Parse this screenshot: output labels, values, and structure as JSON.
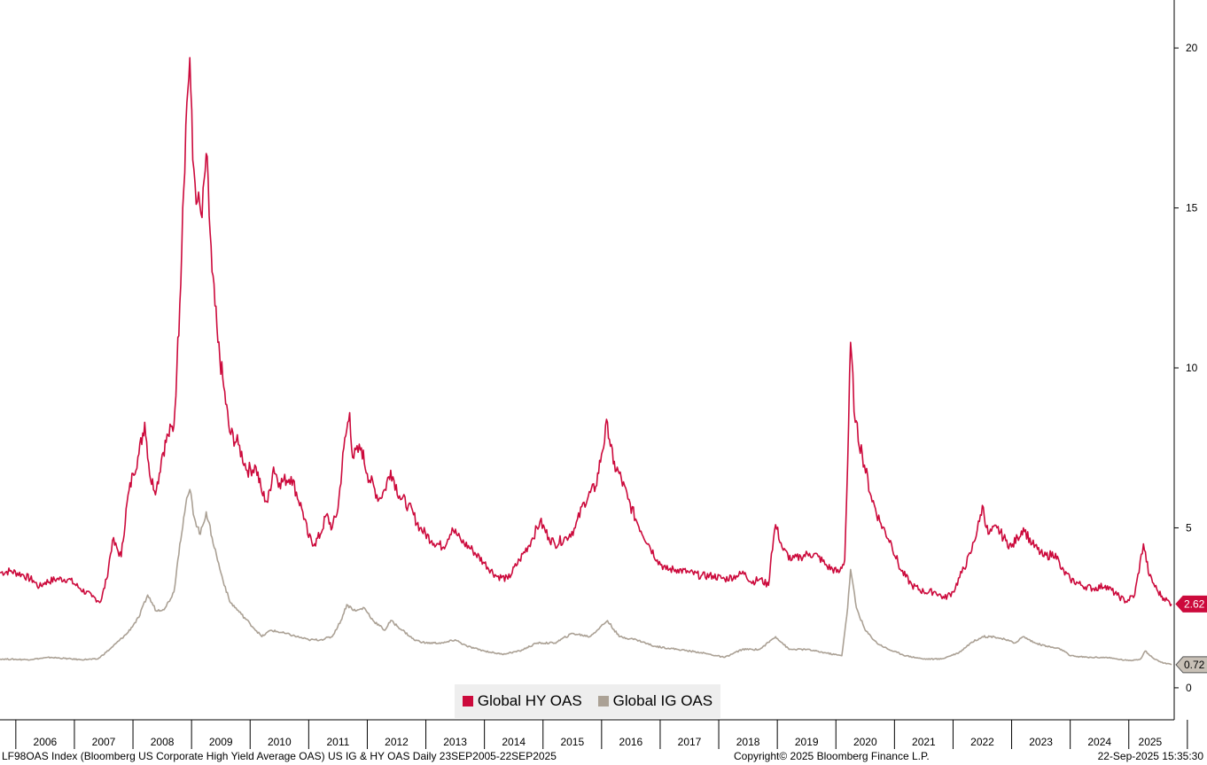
{
  "chart_data": {
    "type": "line",
    "title": "LF98OAS Index (Bloomberg US Corporate High Yield Average OAS) US IG & HY OAS",
    "xlabel": "",
    "ylabel": "",
    "xlim": [
      2005.73,
      2025.73
    ],
    "ylim": [
      -1,
      21.5
    ],
    "y_ticks": [
      0,
      5,
      10,
      15,
      20
    ],
    "y_tick_labels": [
      "0",
      "5",
      "10",
      "15",
      "20"
    ],
    "x_tick_labels": [
      "2006",
      "2007",
      "2008",
      "2009",
      "2010",
      "2011",
      "2012",
      "2013",
      "2014",
      "2015",
      "2016",
      "2017",
      "2018",
      "2019",
      "2020",
      "2021",
      "2022",
      "2023",
      "2024",
      "2025"
    ],
    "legend_position": "bottom-center",
    "series": [
      {
        "name": "Global HY OAS",
        "color": "#cc0a3c",
        "last_value": "2.62",
        "points": [
          [
            2005.73,
            3.6
          ],
          [
            2005.9,
            3.65
          ],
          [
            2006.1,
            3.55
          ],
          [
            2006.3,
            3.35
          ],
          [
            2006.4,
            3.15
          ],
          [
            2006.5,
            3.3
          ],
          [
            2006.7,
            3.4
          ],
          [
            2006.9,
            3.4
          ],
          [
            2007.1,
            3.1
          ],
          [
            2007.3,
            2.85
          ],
          [
            2007.45,
            2.7
          ],
          [
            2007.55,
            3.4
          ],
          [
            2007.65,
            4.6
          ],
          [
            2007.8,
            4.1
          ],
          [
            2007.9,
            5.8
          ],
          [
            2008.0,
            6.7
          ],
          [
            2008.1,
            7.3
          ],
          [
            2008.2,
            8.3
          ],
          [
            2008.3,
            6.5
          ],
          [
            2008.4,
            6.2
          ],
          [
            2008.5,
            7.3
          ],
          [
            2008.6,
            7.9
          ],
          [
            2008.7,
            8.2
          ],
          [
            2008.75,
            10.0
          ],
          [
            2008.8,
            12.0
          ],
          [
            2008.85,
            15.0
          ],
          [
            2008.92,
            18.3
          ],
          [
            2008.97,
            19.7
          ],
          [
            2009.02,
            16.5
          ],
          [
            2009.1,
            15.2
          ],
          [
            2009.18,
            14.7
          ],
          [
            2009.25,
            16.7
          ],
          [
            2009.35,
            13.0
          ],
          [
            2009.45,
            10.8
          ],
          [
            2009.55,
            9.4
          ],
          [
            2009.65,
            8.0
          ],
          [
            2009.8,
            7.6
          ],
          [
            2009.95,
            6.8
          ],
          [
            2010.1,
            6.9
          ],
          [
            2010.2,
            6.1
          ],
          [
            2010.3,
            5.8
          ],
          [
            2010.4,
            6.9
          ],
          [
            2010.5,
            6.4
          ],
          [
            2010.7,
            6.6
          ],
          [
            2010.9,
            5.5
          ],
          [
            2011.0,
            4.7
          ],
          [
            2011.1,
            4.5
          ],
          [
            2011.2,
            4.8
          ],
          [
            2011.3,
            5.4
          ],
          [
            2011.4,
            5.0
          ],
          [
            2011.5,
            5.6
          ],
          [
            2011.6,
            7.5
          ],
          [
            2011.7,
            8.6
          ],
          [
            2011.75,
            7.2
          ],
          [
            2011.9,
            7.5
          ],
          [
            2012.0,
            6.7
          ],
          [
            2012.2,
            5.9
          ],
          [
            2012.3,
            6.2
          ],
          [
            2012.4,
            6.8
          ],
          [
            2012.55,
            6.0
          ],
          [
            2012.7,
            5.7
          ],
          [
            2012.9,
            5.0
          ],
          [
            2013.1,
            4.6
          ],
          [
            2013.3,
            4.4
          ],
          [
            2013.45,
            5.0
          ],
          [
            2013.6,
            4.6
          ],
          [
            2013.8,
            4.3
          ],
          [
            2014.0,
            3.9
          ],
          [
            2014.2,
            3.5
          ],
          [
            2014.4,
            3.4
          ],
          [
            2014.6,
            4.0
          ],
          [
            2014.8,
            4.6
          ],
          [
            2014.95,
            5.2
          ],
          [
            2015.1,
            4.7
          ],
          [
            2015.2,
            4.5
          ],
          [
            2015.4,
            4.7
          ],
          [
            2015.55,
            5.0
          ],
          [
            2015.7,
            5.8
          ],
          [
            2015.9,
            6.3
          ],
          [
            2016.0,
            7.3
          ],
          [
            2016.1,
            8.3
          ],
          [
            2016.2,
            7.0
          ],
          [
            2016.3,
            6.7
          ],
          [
            2016.45,
            5.9
          ],
          [
            2016.6,
            5.2
          ],
          [
            2016.8,
            4.5
          ],
          [
            2016.95,
            4.0
          ],
          [
            2017.1,
            3.7
          ],
          [
            2017.3,
            3.7
          ],
          [
            2017.5,
            3.6
          ],
          [
            2017.7,
            3.5
          ],
          [
            2017.9,
            3.5
          ],
          [
            2018.1,
            3.4
          ],
          [
            2018.3,
            3.5
          ],
          [
            2018.45,
            3.6
          ],
          [
            2018.55,
            3.3
          ],
          [
            2018.7,
            3.4
          ],
          [
            2018.85,
            3.2
          ],
          [
            2018.9,
            4.2
          ],
          [
            2018.97,
            5.1
          ],
          [
            2019.1,
            4.3
          ],
          [
            2019.25,
            4.0
          ],
          [
            2019.4,
            4.1
          ],
          [
            2019.55,
            4.2
          ],
          [
            2019.7,
            4.1
          ],
          [
            2019.85,
            3.8
          ],
          [
            2020.05,
            3.6
          ],
          [
            2020.15,
            4.0
          ],
          [
            2020.2,
            7.0
          ],
          [
            2020.25,
            10.8
          ],
          [
            2020.33,
            8.3
          ],
          [
            2020.45,
            7.3
          ],
          [
            2020.6,
            6.0
          ],
          [
            2020.75,
            5.2
          ],
          [
            2020.95,
            4.5
          ],
          [
            2021.1,
            3.7
          ],
          [
            2021.3,
            3.2
          ],
          [
            2021.5,
            3.0
          ],
          [
            2021.7,
            3.0
          ],
          [
            2021.85,
            2.8
          ],
          [
            2022.0,
            3.0
          ],
          [
            2022.15,
            3.6
          ],
          [
            2022.3,
            4.2
          ],
          [
            2022.45,
            5.2
          ],
          [
            2022.5,
            5.7
          ],
          [
            2022.6,
            4.8
          ],
          [
            2022.75,
            5.0
          ],
          [
            2022.9,
            4.6
          ],
          [
            2023.0,
            4.4
          ],
          [
            2023.1,
            4.7
          ],
          [
            2023.2,
            5.0
          ],
          [
            2023.35,
            4.5
          ],
          [
            2023.55,
            4.1
          ],
          [
            2023.75,
            4.2
          ],
          [
            2023.85,
            3.7
          ],
          [
            2024.0,
            3.4
          ],
          [
            2024.2,
            3.2
          ],
          [
            2024.4,
            3.1
          ],
          [
            2024.6,
            3.2
          ],
          [
            2024.8,
            2.9
          ],
          [
            2024.95,
            2.7
          ],
          [
            2025.1,
            2.9
          ],
          [
            2025.25,
            4.5
          ],
          [
            2025.35,
            3.5
          ],
          [
            2025.5,
            3.0
          ],
          [
            2025.6,
            2.8
          ],
          [
            2025.73,
            2.62
          ]
        ]
      },
      {
        "name": "Global IG OAS",
        "color": "#aba195",
        "last_value": "0.72",
        "points": [
          [
            2005.73,
            0.9
          ],
          [
            2006.2,
            0.88
          ],
          [
            2006.6,
            0.95
          ],
          [
            2007.1,
            0.88
          ],
          [
            2007.4,
            0.9
          ],
          [
            2007.6,
            1.2
          ],
          [
            2007.9,
            1.7
          ],
          [
            2008.1,
            2.2
          ],
          [
            2008.25,
            2.9
          ],
          [
            2008.4,
            2.4
          ],
          [
            2008.55,
            2.5
          ],
          [
            2008.7,
            3.0
          ],
          [
            2008.8,
            4.5
          ],
          [
            2008.9,
            5.7
          ],
          [
            2008.97,
            6.2
          ],
          [
            2009.05,
            5.3
          ],
          [
            2009.15,
            4.8
          ],
          [
            2009.25,
            5.5
          ],
          [
            2009.35,
            4.7
          ],
          [
            2009.5,
            3.6
          ],
          [
            2009.65,
            2.7
          ],
          [
            2009.85,
            2.3
          ],
          [
            2010.0,
            2.0
          ],
          [
            2010.2,
            1.6
          ],
          [
            2010.35,
            1.8
          ],
          [
            2010.6,
            1.7
          ],
          [
            2010.8,
            1.6
          ],
          [
            2011.0,
            1.5
          ],
          [
            2011.2,
            1.5
          ],
          [
            2011.4,
            1.6
          ],
          [
            2011.55,
            2.1
          ],
          [
            2011.65,
            2.6
          ],
          [
            2011.8,
            2.4
          ],
          [
            2011.95,
            2.5
          ],
          [
            2012.1,
            2.1
          ],
          [
            2012.3,
            1.8
          ],
          [
            2012.4,
            2.1
          ],
          [
            2012.6,
            1.8
          ],
          [
            2012.8,
            1.5
          ],
          [
            2013.0,
            1.4
          ],
          [
            2013.3,
            1.4
          ],
          [
            2013.5,
            1.5
          ],
          [
            2013.7,
            1.3
          ],
          [
            2014.0,
            1.15
          ],
          [
            2014.3,
            1.05
          ],
          [
            2014.6,
            1.15
          ],
          [
            2014.9,
            1.4
          ],
          [
            2015.2,
            1.4
          ],
          [
            2015.5,
            1.7
          ],
          [
            2015.8,
            1.6
          ],
          [
            2016.1,
            2.1
          ],
          [
            2016.3,
            1.6
          ],
          [
            2016.6,
            1.5
          ],
          [
            2016.9,
            1.3
          ],
          [
            2017.3,
            1.2
          ],
          [
            2017.7,
            1.1
          ],
          [
            2018.1,
            0.95
          ],
          [
            2018.4,
            1.2
          ],
          [
            2018.7,
            1.2
          ],
          [
            2018.97,
            1.6
          ],
          [
            2019.2,
            1.2
          ],
          [
            2019.5,
            1.2
          ],
          [
            2019.8,
            1.1
          ],
          [
            2020.1,
            1.0
          ],
          [
            2020.2,
            2.5
          ],
          [
            2020.25,
            3.7
          ],
          [
            2020.35,
            2.5
          ],
          [
            2020.5,
            1.8
          ],
          [
            2020.7,
            1.4
          ],
          [
            2020.9,
            1.2
          ],
          [
            2021.2,
            1.0
          ],
          [
            2021.5,
            0.9
          ],
          [
            2021.8,
            0.9
          ],
          [
            2022.1,
            1.1
          ],
          [
            2022.3,
            1.4
          ],
          [
            2022.5,
            1.6
          ],
          [
            2022.7,
            1.6
          ],
          [
            2022.9,
            1.5
          ],
          [
            2023.05,
            1.4
          ],
          [
            2023.2,
            1.6
          ],
          [
            2023.4,
            1.4
          ],
          [
            2023.6,
            1.3
          ],
          [
            2023.85,
            1.2
          ],
          [
            2024.0,
            1.0
          ],
          [
            2024.3,
            0.95
          ],
          [
            2024.6,
            0.95
          ],
          [
            2024.8,
            0.9
          ],
          [
            2025.0,
            0.85
          ],
          [
            2025.2,
            0.9
          ],
          [
            2025.28,
            1.15
          ],
          [
            2025.4,
            0.95
          ],
          [
            2025.55,
            0.8
          ],
          [
            2025.73,
            0.72
          ]
        ]
      }
    ]
  },
  "legend": {
    "hy_label": "Global HY OAS",
    "ig_label": "Global IG OAS"
  },
  "footer": {
    "left": "LF98OAS Index (Bloomberg US Corporate High Yield Average OAS) US IG & HY OAS  Daily 23SEP2005-22SEP2025",
    "center": "Copyright© 2025 Bloomberg Finance L.P.",
    "right": "22-Sep-2025 15:35:30"
  },
  "colors": {
    "hy": "#cc0a3c",
    "ig": "#aba195",
    "axis": "#000000"
  }
}
